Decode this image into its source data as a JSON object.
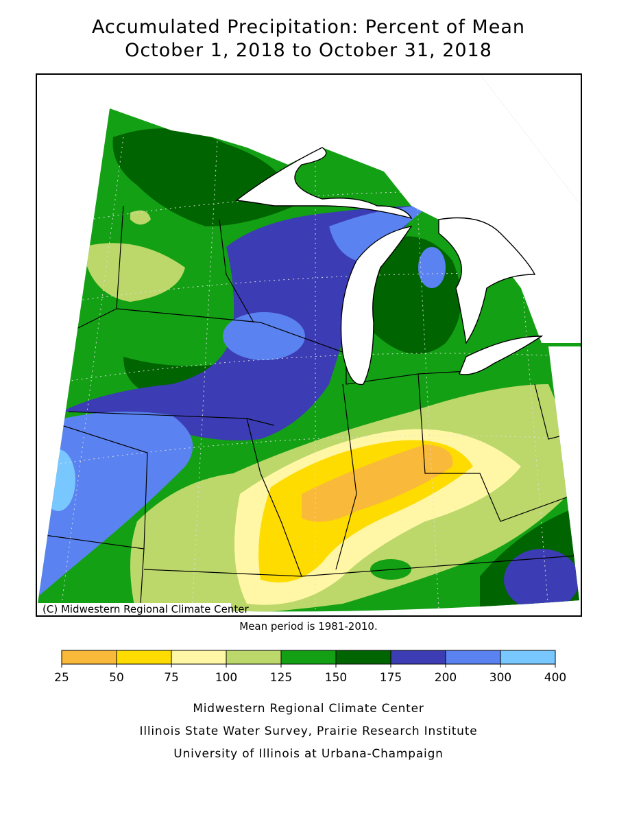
{
  "title": [
    "Accumulated Precipitation: Percent of Mean",
    "October 1, 2018 to October 31, 2018"
  ],
  "map": {
    "copyright": "(C) Midwestern Regional Climate Center"
  },
  "note": "Mean period is 1981-2010.",
  "legend": {
    "bounds": [
      25,
      50,
      75,
      100,
      125,
      150,
      175,
      200,
      300,
      400
    ],
    "colors": [
      "#f9b93a",
      "#ffdc00",
      "#fff7a6",
      "#bcd86a",
      "#14a014",
      "#006400",
      "#3c3cb4",
      "#5a82f0",
      "#78c8ff"
    ]
  },
  "credits": [
    "Midwestern Regional Climate Center",
    "Illinois State Water Survey, Prairie Research Institute",
    "University of Illinois at Urbana-Champaign"
  ]
}
